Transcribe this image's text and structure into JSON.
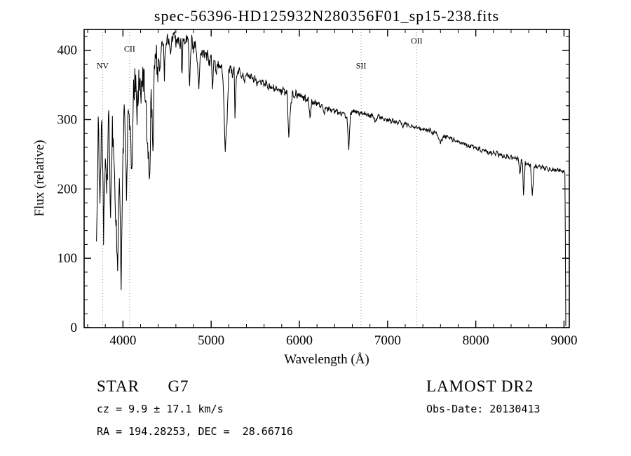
{
  "chart_data": {
    "type": "line",
    "title": "spec-56396-HD125932N280356F01_sp15-238.fits",
    "xlabel": "Wavelength (Å)",
    "ylabel": "Flux (relative)",
    "xlim": [
      3560,
      9060
    ],
    "ylim": [
      0,
      430
    ],
    "x_major_ticks": [
      4000,
      5000,
      6000,
      7000,
      8000,
      9000
    ],
    "x_minor_step": 200,
    "y_major_ticks": [
      0,
      100,
      200,
      300,
      400
    ],
    "y_minor_step": 20,
    "grid": false,
    "legend": "none",
    "line_color": "#000000",
    "marker_line_color": "#909090",
    "spectral_lines": [
      {
        "name": "NV",
        "wavelength": 3770,
        "label_flux": 374
      },
      {
        "name": "CII",
        "wavelength": 4076,
        "label_flux": 398
      },
      {
        "name": "SII",
        "wavelength": 6700,
        "label_flux": 374
      },
      {
        "name": "OII",
        "wavelength": 7330,
        "label_flux": 410
      }
    ],
    "noise_regions": [
      [
        3700,
        4400,
        26
      ],
      [
        4400,
        5200,
        8
      ],
      [
        5200,
        6200,
        5
      ],
      [
        6200,
        9005,
        3
      ]
    ],
    "series": [
      {
        "name": "Flux",
        "points": [
          [
            3700,
            112
          ],
          [
            3720,
            295
          ],
          [
            3740,
            165
          ],
          [
            3760,
            318
          ],
          [
            3780,
            138
          ],
          [
            3800,
            262
          ],
          [
            3820,
            200
          ],
          [
            3840,
            312
          ],
          [
            3860,
            148
          ],
          [
            3880,
            300
          ],
          [
            3900,
            225
          ],
          [
            3920,
            160
          ],
          [
            3940,
            95
          ],
          [
            3960,
            235
          ],
          [
            3980,
            78
          ],
          [
            4000,
            255
          ],
          [
            4020,
            315
          ],
          [
            4040,
            198
          ],
          [
            4060,
            332
          ],
          [
            4080,
            285
          ],
          [
            4100,
            215
          ],
          [
            4120,
            345
          ],
          [
            4140,
            362
          ],
          [
            4160,
            318
          ],
          [
            4180,
            356
          ],
          [
            4200,
            342
          ],
          [
            4220,
            365
          ],
          [
            4240,
            350
          ],
          [
            4260,
            330
          ],
          [
            4280,
            250
          ],
          [
            4300,
            215
          ],
          [
            4320,
            330
          ],
          [
            4340,
            262
          ],
          [
            4360,
            385
          ],
          [
            4380,
            402
          ],
          [
            4386,
            345
          ],
          [
            4400,
            392
          ],
          [
            4420,
            372
          ],
          [
            4440,
            406
          ],
          [
            4460,
            416
          ],
          [
            4470,
            360
          ],
          [
            4480,
            402
          ],
          [
            4500,
            420
          ],
          [
            4520,
            409
          ],
          [
            4540,
            399
          ],
          [
            4560,
            418
          ],
          [
            4580,
            424
          ],
          [
            4600,
            411
          ],
          [
            4620,
            421
          ],
          [
            4640,
            401
          ],
          [
            4660,
            416
          ],
          [
            4668,
            352
          ],
          [
            4680,
            422
          ],
          [
            4700,
            406
          ],
          [
            4720,
            418
          ],
          [
            4740,
            411
          ],
          [
            4755,
            355
          ],
          [
            4770,
            396
          ],
          [
            4780,
            416
          ],
          [
            4800,
            401
          ],
          [
            4820,
            409
          ],
          [
            4840,
            391
          ],
          [
            4860,
            342
          ],
          [
            4880,
            401
          ],
          [
            4900,
            396
          ],
          [
            4920,
            398
          ],
          [
            4940,
            388
          ],
          [
            4960,
            395
          ],
          [
            4980,
            381
          ],
          [
            5000,
            390
          ],
          [
            5015,
            345
          ],
          [
            5030,
            378
          ],
          [
            5040,
            386
          ],
          [
            5060,
            372
          ],
          [
            5080,
            381
          ],
          [
            5100,
            368
          ],
          [
            5120,
            376
          ],
          [
            5140,
            340
          ],
          [
            5160,
            256
          ],
          [
            5180,
            300
          ],
          [
            5200,
            370
          ],
          [
            5220,
            378
          ],
          [
            5240,
            365
          ],
          [
            5260,
            372
          ],
          [
            5270,
            305
          ],
          [
            5285,
            360
          ],
          [
            5300,
            368
          ],
          [
            5320,
            372
          ],
          [
            5340,
            361
          ],
          [
            5360,
            366
          ],
          [
            5380,
            356
          ],
          [
            5400,
            362
          ],
          [
            5420,
            368
          ],
          [
            5440,
            358
          ],
          [
            5460,
            363
          ],
          [
            5480,
            356
          ],
          [
            5500,
            361
          ],
          [
            5520,
            353
          ],
          [
            5540,
            358
          ],
          [
            5560,
            351
          ],
          [
            5580,
            356
          ],
          [
            5600,
            348
          ],
          [
            5620,
            353
          ],
          [
            5640,
            346
          ],
          [
            5660,
            350
          ],
          [
            5680,
            344
          ],
          [
            5700,
            348
          ],
          [
            5720,
            342
          ],
          [
            5740,
            346
          ],
          [
            5760,
            340
          ],
          [
            5780,
            344
          ],
          [
            5800,
            339
          ],
          [
            5820,
            343
          ],
          [
            5840,
            337
          ],
          [
            5860,
            341
          ],
          [
            5880,
            272
          ],
          [
            5900,
            316
          ],
          [
            5920,
            338
          ],
          [
            5940,
            334
          ],
          [
            5960,
            338
          ],
          [
            5980,
            333
          ],
          [
            6000,
            336
          ],
          [
            6020,
            332
          ],
          [
            6040,
            329
          ],
          [
            6060,
            332
          ],
          [
            6080,
            327
          ],
          [
            6100,
            330
          ],
          [
            6120,
            300
          ],
          [
            6140,
            328
          ],
          [
            6160,
            323
          ],
          [
            6180,
            327
          ],
          [
            6200,
            321
          ],
          [
            6220,
            325
          ],
          [
            6240,
            318
          ],
          [
            6260,
            322
          ],
          [
            6280,
            308
          ],
          [
            6300,
            318
          ],
          [
            6320,
            314
          ],
          [
            6340,
            318
          ],
          [
            6360,
            313
          ],
          [
            6380,
            316
          ],
          [
            6400,
            310
          ],
          [
            6420,
            314
          ],
          [
            6440,
            308
          ],
          [
            6460,
            312
          ],
          [
            6480,
            307
          ],
          [
            6500,
            310
          ],
          [
            6520,
            306
          ],
          [
            6540,
            300
          ],
          [
            6560,
            258
          ],
          [
            6580,
            308
          ],
          [
            6600,
            312
          ],
          [
            6620,
            314
          ],
          [
            6640,
            310
          ],
          [
            6660,
            313
          ],
          [
            6680,
            308
          ],
          [
            6700,
            311
          ],
          [
            6720,
            307
          ],
          [
            6740,
            310
          ],
          [
            6760,
            306
          ],
          [
            6780,
            308
          ],
          [
            6800,
            304
          ],
          [
            6820,
            307
          ],
          [
            6840,
            303
          ],
          [
            6860,
            298
          ],
          [
            6880,
            303
          ],
          [
            6900,
            305
          ],
          [
            6920,
            301
          ],
          [
            6940,
            304
          ],
          [
            6960,
            300
          ],
          [
            6980,
            302
          ],
          [
            7000,
            298
          ],
          [
            7020,
            301
          ],
          [
            7040,
            297
          ],
          [
            7060,
            300
          ],
          [
            7080,
            296
          ],
          [
            7100,
            298
          ],
          [
            7120,
            295
          ],
          [
            7140,
            297
          ],
          [
            7160,
            293
          ],
          [
            7180,
            290
          ],
          [
            7200,
            294
          ],
          [
            7220,
            291
          ],
          [
            7240,
            293
          ],
          [
            7260,
            289
          ],
          [
            7280,
            291
          ],
          [
            7300,
            288
          ],
          [
            7320,
            290
          ],
          [
            7340,
            286
          ],
          [
            7360,
            288
          ],
          [
            7380,
            285
          ],
          [
            7400,
            287
          ],
          [
            7420,
            284
          ],
          [
            7440,
            286
          ],
          [
            7460,
            283
          ],
          [
            7480,
            285
          ],
          [
            7500,
            282
          ],
          [
            7520,
            280
          ],
          [
            7540,
            282
          ],
          [
            7560,
            278
          ],
          [
            7580,
            272
          ],
          [
            7600,
            265
          ],
          [
            7620,
            272
          ],
          [
            7640,
            276
          ],
          [
            7660,
            274
          ],
          [
            7680,
            276
          ],
          [
            7700,
            272
          ],
          [
            7720,
            274
          ],
          [
            7740,
            270
          ],
          [
            7760,
            272
          ],
          [
            7780,
            268
          ],
          [
            7800,
            270
          ],
          [
            7820,
            266
          ],
          [
            7840,
            268
          ],
          [
            7860,
            264
          ],
          [
            7880,
            266
          ],
          [
            7900,
            262
          ],
          [
            7920,
            264
          ],
          [
            7940,
            260
          ],
          [
            7960,
            262
          ],
          [
            7980,
            258
          ],
          [
            8000,
            260
          ],
          [
            8020,
            257
          ],
          [
            8040,
            259
          ],
          [
            8060,
            255
          ],
          [
            8080,
            257
          ],
          [
            8100,
            254
          ],
          [
            8120,
            256
          ],
          [
            8140,
            252
          ],
          [
            8160,
            254
          ],
          [
            8180,
            251
          ],
          [
            8200,
            253
          ],
          [
            8220,
            250
          ],
          [
            8240,
            252
          ],
          [
            8260,
            248
          ],
          [
            8280,
            250
          ],
          [
            8300,
            247
          ],
          [
            8320,
            249
          ],
          [
            8340,
            246
          ],
          [
            8360,
            248
          ],
          [
            8380,
            245
          ],
          [
            8400,
            247
          ],
          [
            8420,
            244
          ],
          [
            8440,
            246
          ],
          [
            8460,
            243
          ],
          [
            8480,
            245
          ],
          [
            8500,
            222
          ],
          [
            8515,
            240
          ],
          [
            8530,
            238
          ],
          [
            8540,
            190
          ],
          [
            8560,
            238
          ],
          [
            8580,
            236
          ],
          [
            8600,
            234
          ],
          [
            8620,
            236
          ],
          [
            8640,
            188
          ],
          [
            8660,
            230
          ],
          [
            8680,
            234
          ],
          [
            8700,
            232
          ],
          [
            8720,
            234
          ],
          [
            8740,
            231
          ],
          [
            8760,
            233
          ],
          [
            8780,
            229
          ],
          [
            8800,
            231
          ],
          [
            8820,
            228
          ],
          [
            8840,
            230
          ],
          [
            8860,
            227
          ],
          [
            8880,
            229
          ],
          [
            8900,
            226
          ],
          [
            8920,
            228
          ],
          [
            8940,
            226
          ],
          [
            8960,
            227
          ],
          [
            8980,
            225
          ],
          [
            9000,
            224
          ],
          [
            9012,
            222
          ],
          [
            9020,
            2
          ]
        ]
      }
    ]
  },
  "footer": {
    "class_line": "STAR      G7",
    "survey": "LAMOST DR2",
    "cz_line": "cz = 9.9 ± 17.1 km/s",
    "obs_date": "Obs-Date: 20130413",
    "radec": "RA = 194.28253, DEC =  28.66716"
  }
}
